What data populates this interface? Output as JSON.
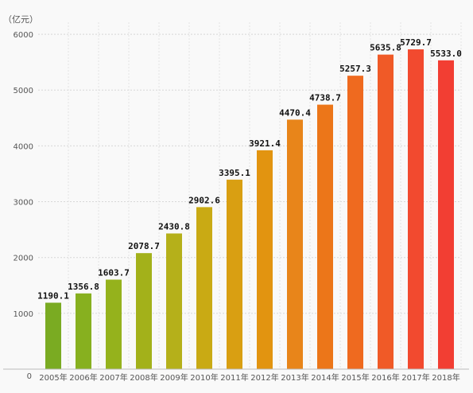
{
  "chart_data": {
    "type": "bar",
    "ylabel": "（亿元）",
    "categories": [
      "2005年",
      "2006年",
      "2007年",
      "2008年",
      "2009年",
      "2010年",
      "2011年",
      "2012年",
      "2013年",
      "2014年",
      "2015年",
      "2016年",
      "2017年",
      "2018年"
    ],
    "values": [
      1190.1,
      1356.8,
      1603.7,
      2078.7,
      2430.8,
      2902.6,
      3395.1,
      3921.4,
      4470.4,
      4738.7,
      5257.3,
      5635.8,
      5729.7,
      5533.0
    ],
    "value_labels": [
      "1190.1",
      "1356.8",
      "1603.7",
      "2078.7",
      "2430.8",
      "2902.6",
      "3395.1",
      "3921.4",
      "4470.4",
      "4738.7",
      "5257.3",
      "5635.8",
      "5729.7",
      "5533.0"
    ],
    "y_ticks": [
      0,
      1000,
      2000,
      3000,
      4000,
      5000,
      6000
    ],
    "ylim": [
      0,
      6500
    ],
    "grid": true,
    "bar_colors": [
      "#7aab22",
      "#87b01f",
      "#95b21c",
      "#a3b11a",
      "#b5b01a",
      "#c9aa14",
      "#d99f12",
      "#e29410",
      "#e8851a",
      "#ec7619",
      "#ef6a1f",
      "#f05a27",
      "#f24a2f",
      "#f23e33"
    ]
  }
}
